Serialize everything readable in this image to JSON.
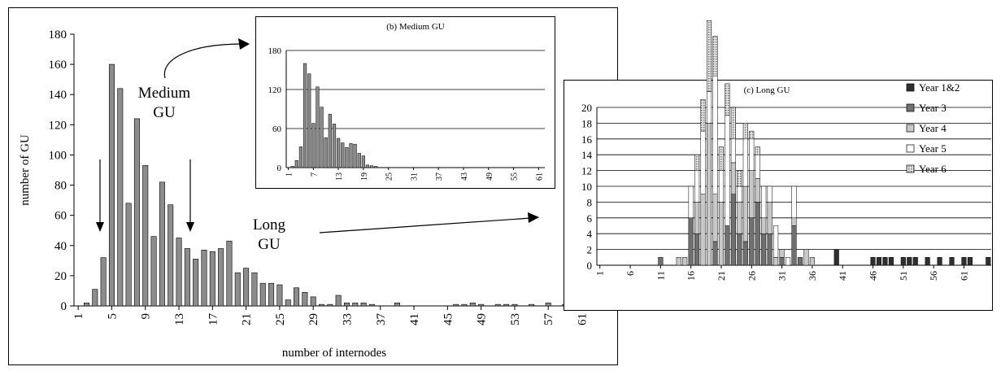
{
  "chart_data": [
    {
      "id": "a",
      "type": "bar",
      "title": "",
      "xlabel": "number of internodes",
      "ylabel": "number of GU",
      "ylim": [
        0,
        180
      ],
      "yticks": [
        0,
        20,
        40,
        60,
        80,
        100,
        120,
        140,
        160,
        180
      ],
      "xticks": [
        "1",
        "5",
        "9",
        "13",
        "17",
        "21",
        "25",
        "29",
        "33",
        "37",
        "41",
        "45",
        "49",
        "53",
        "57",
        "61"
      ],
      "grid": false,
      "x": [
        1,
        2,
        3,
        4,
        5,
        6,
        7,
        8,
        9,
        10,
        11,
        12,
        13,
        14,
        15,
        16,
        17,
        18,
        19,
        20,
        21,
        22,
        23,
        24,
        25,
        26,
        27,
        28,
        29,
        30,
        31,
        32,
        33,
        34,
        35,
        36,
        37,
        38,
        39,
        40,
        41,
        42,
        43,
        44,
        45,
        46,
        47,
        48,
        49,
        50,
        51,
        52,
        53,
        54,
        55,
        56,
        57,
        58,
        59,
        60,
        61,
        62
      ],
      "values": [
        0,
        2,
        11,
        32,
        160,
        144,
        68,
        124,
        93,
        46,
        82,
        67,
        45,
        38,
        31,
        37,
        36,
        38,
        43,
        22,
        25,
        22,
        15,
        15,
        14,
        4,
        12,
        9,
        6,
        1,
        1,
        7,
        2,
        2,
        2,
        1,
        0,
        0,
        2,
        0,
        0,
        0,
        0,
        0,
        0,
        1,
        1,
        2,
        1,
        0,
        1,
        1,
        1,
        0,
        1,
        0,
        2,
        0,
        1,
        0,
        1,
        1
      ],
      "annotations": [
        "Medium",
        "GU",
        "Long",
        "GU"
      ]
    },
    {
      "id": "b",
      "type": "bar",
      "title": "(b) Medium GU",
      "ylim": [
        0,
        180
      ],
      "yticks": [
        0,
        60,
        120,
        180
      ],
      "xticks": [
        "1",
        "7",
        "13",
        "19",
        "25",
        "31",
        "37",
        "43",
        "49",
        "55",
        "61"
      ],
      "grid": true,
      "x": [
        1,
        2,
        3,
        4,
        5,
        6,
        7,
        8,
        9,
        10,
        11,
        12,
        13,
        14,
        15,
        16,
        17,
        18,
        19,
        20,
        21,
        22,
        23,
        24,
        25,
        26,
        27,
        28,
        29,
        30,
        31,
        32,
        33,
        34,
        35,
        36,
        37,
        38,
        39,
        40,
        41,
        42,
        43,
        44,
        45,
        46,
        47,
        48,
        49,
        50,
        51,
        52,
        53,
        54,
        55,
        56,
        57,
        58,
        59,
        60,
        61,
        62
      ],
      "values": [
        0,
        2,
        11,
        32,
        160,
        144,
        68,
        124,
        93,
        46,
        82,
        67,
        45,
        38,
        31,
        37,
        36,
        22,
        18,
        4,
        3,
        2,
        0,
        0,
        0,
        0,
        0,
        0,
        0,
        0,
        0,
        0,
        0,
        0,
        0,
        0,
        0,
        0,
        0,
        0,
        0,
        0,
        0,
        0,
        0,
        0,
        0,
        0,
        0,
        0,
        0,
        0,
        0,
        0,
        0,
        0,
        0,
        0,
        0,
        0,
        0,
        0
      ]
    },
    {
      "id": "c",
      "type": "bar",
      "title": "(c) Long GU",
      "ylim": [
        0,
        20
      ],
      "yticks": [
        0,
        2,
        4,
        6,
        8,
        10,
        12,
        14,
        16,
        18,
        20
      ],
      "xticks": [
        "1",
        "6",
        "11",
        "16",
        "21",
        "26",
        "31",
        "36",
        "41",
        "46",
        "51",
        "56",
        "61"
      ],
      "grid": true,
      "legend": "right",
      "categories": [
        1,
        2,
        3,
        4,
        5,
        6,
        7,
        8,
        9,
        10,
        11,
        12,
        13,
        14,
        15,
        16,
        17,
        18,
        19,
        20,
        21,
        22,
        23,
        24,
        25,
        26,
        27,
        28,
        29,
        30,
        31,
        32,
        33,
        34,
        35,
        36,
        37,
        38,
        39,
        40,
        41,
        42,
        43,
        44,
        45,
        46,
        47,
        48,
        49,
        50,
        51,
        52,
        53,
        54,
        55,
        56,
        57,
        58,
        59,
        60,
        61,
        62,
        63,
        64,
        65
      ],
      "series": [
        {
          "name": "Year 1&2",
          "color": "#2f2f2f",
          "pattern": "none",
          "values": [
            0,
            0,
            0,
            0,
            0,
            0,
            0,
            0,
            0,
            0,
            0,
            0,
            0,
            0,
            0,
            0,
            0,
            0,
            0,
            0,
            0,
            0,
            0,
            0,
            0,
            0,
            0,
            0,
            0,
            0,
            0,
            0,
            0,
            0,
            0,
            0,
            0,
            0,
            0,
            2,
            0,
            0,
            0,
            0,
            0,
            1,
            1,
            1,
            1,
            0,
            1,
            1,
            1,
            0,
            1,
            0,
            1,
            0,
            1,
            0,
            1,
            1,
            0,
            0,
            1
          ]
        },
        {
          "name": "Year 3",
          "color": "#707070",
          "pattern": "none",
          "values": [
            0,
            0,
            0,
            0,
            0,
            0,
            0,
            0,
            0,
            0,
            1,
            0,
            0,
            0,
            0,
            6,
            4,
            0,
            0,
            3,
            0,
            5,
            9,
            4,
            3,
            6,
            8,
            4,
            4,
            0,
            1,
            0,
            5,
            1,
            0,
            0,
            0,
            0,
            0,
            0,
            0,
            0,
            0,
            0,
            0,
            0,
            0,
            0,
            0,
            0,
            0,
            0,
            0,
            0,
            0,
            0,
            0,
            0,
            0,
            0,
            0,
            0,
            0,
            0,
            0
          ]
        },
        {
          "name": "Year 4",
          "color": "#c8c8c8",
          "pattern": "none",
          "values": [
            0,
            0,
            0,
            0,
            0,
            0,
            0,
            0,
            0,
            0,
            0,
            0,
            0,
            1,
            1,
            0,
            4,
            9,
            18,
            6,
            8,
            0,
            4,
            4,
            7,
            6,
            3,
            2,
            4,
            1,
            1,
            0,
            1,
            0,
            2,
            1,
            0,
            0,
            0,
            0,
            0,
            0,
            0,
            0,
            0,
            0,
            0,
            0,
            0,
            0,
            0,
            0,
            0,
            0,
            0,
            0,
            0,
            0,
            0,
            0,
            0,
            0,
            0,
            0,
            0
          ]
        },
        {
          "name": "Year 5",
          "color": "#ffffff",
          "pattern": "none",
          "values": [
            0,
            0,
            0,
            0,
            0,
            0,
            0,
            0,
            0,
            0,
            0,
            0,
            0,
            0,
            0,
            4,
            4,
            8,
            4,
            15,
            4,
            14,
            3,
            2,
            6,
            4,
            3,
            4,
            2,
            4,
            0,
            1,
            4,
            0,
            0,
            0,
            0,
            0,
            0,
            0,
            0,
            0,
            0,
            0,
            0,
            0,
            0,
            0,
            0,
            0,
            0,
            0,
            0,
            0,
            0,
            0,
            0,
            0,
            0,
            0,
            0,
            0,
            0,
            0,
            0
          ]
        },
        {
          "name": "Year 6",
          "color": "#c0c0c0",
          "pattern": "dots",
          "values": [
            0,
            0,
            0,
            0,
            0,
            0,
            0,
            0,
            0,
            0,
            0,
            0,
            0,
            0,
            0,
            0,
            2,
            4,
            9,
            5,
            3,
            4,
            4,
            2,
            2,
            1,
            1,
            0,
            0,
            0,
            0,
            0,
            0,
            0,
            0,
            0,
            0,
            0,
            0,
            0,
            0,
            0,
            0,
            0,
            0,
            0,
            0,
            0,
            0,
            0,
            0,
            0,
            0,
            0,
            0,
            0,
            0,
            0,
            0,
            0,
            0,
            0,
            0,
            0,
            0
          ]
        }
      ]
    }
  ]
}
